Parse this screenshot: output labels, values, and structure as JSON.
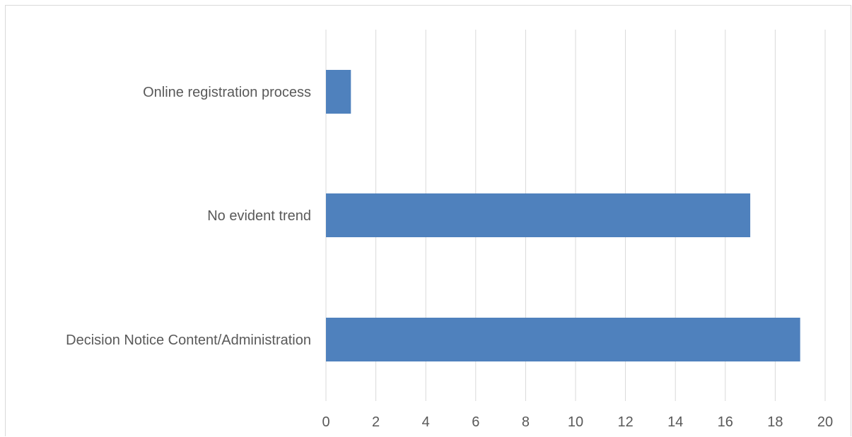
{
  "chart_data": {
    "type": "bar",
    "orientation": "horizontal",
    "categories": [
      "Decision Notice Content/Administration",
      "No evident trend",
      "Online registration process"
    ],
    "values": [
      19,
      17,
      1
    ],
    "xlim": [
      0,
      20
    ],
    "xticks": [
      0,
      2,
      4,
      6,
      8,
      10,
      12,
      14,
      16,
      18,
      20
    ],
    "grid": true,
    "legend": "none",
    "bar_color": "#4f81bd",
    "grid_color": "#d9d9d9",
    "text_color": "#595959"
  }
}
